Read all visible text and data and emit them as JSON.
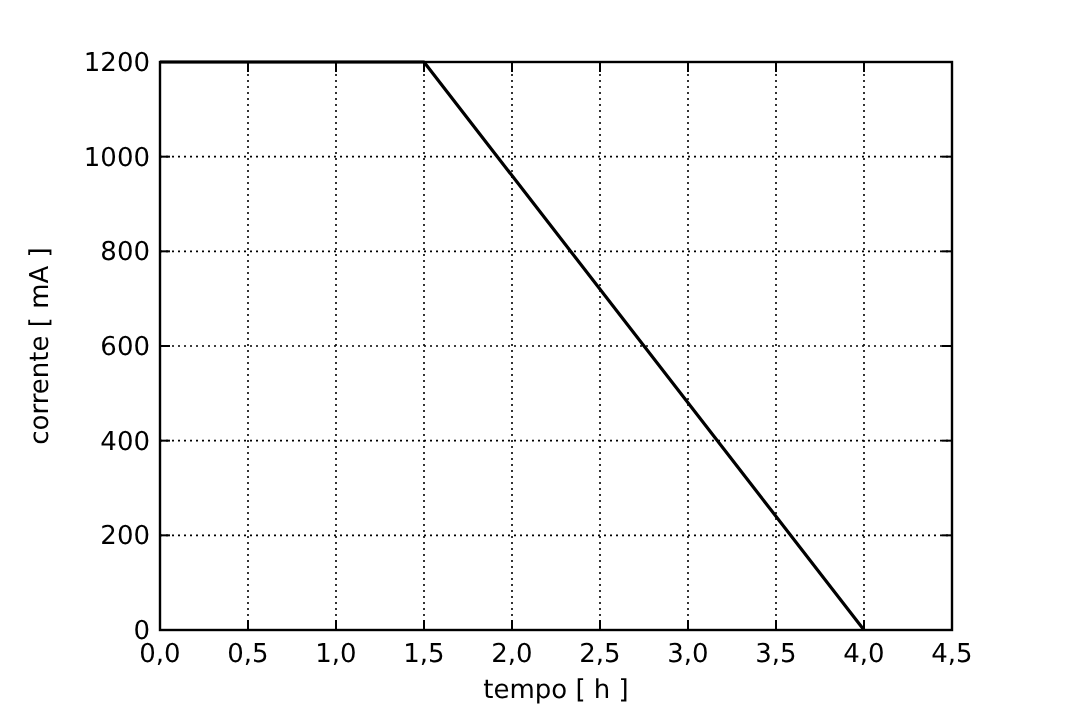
{
  "chart_data": {
    "type": "line",
    "xlabel": "tempo [ h ]",
    "ylabel": "corrente [ mA ]",
    "x": [
      0,
      1.5,
      4
    ],
    "series": [
      {
        "color": "#000000",
        "values": [
          1200,
          1200,
          0
        ]
      }
    ],
    "xlim": [
      0,
      4.5
    ],
    "xticks": [
      {
        "value": 0,
        "label": "0,0"
      },
      {
        "value": 0.5,
        "label": "0,5"
      },
      {
        "value": 1,
        "label": "1,0"
      },
      {
        "value": 1.5,
        "label": "1,5"
      },
      {
        "value": 2,
        "label": "2,0"
      },
      {
        "value": 2.5,
        "label": "2,5"
      },
      {
        "value": 3,
        "label": "3,0"
      },
      {
        "value": 3.5,
        "label": "3,5"
      },
      {
        "value": 4,
        "label": "4,0"
      },
      {
        "value": 4.5,
        "label": "4,5"
      }
    ],
    "ylim": [
      0,
      1200
    ],
    "yticks": [
      0,
      200,
      400,
      600,
      800,
      1000,
      1200
    ],
    "grid": true,
    "line_style": "solid",
    "marker": "none"
  }
}
